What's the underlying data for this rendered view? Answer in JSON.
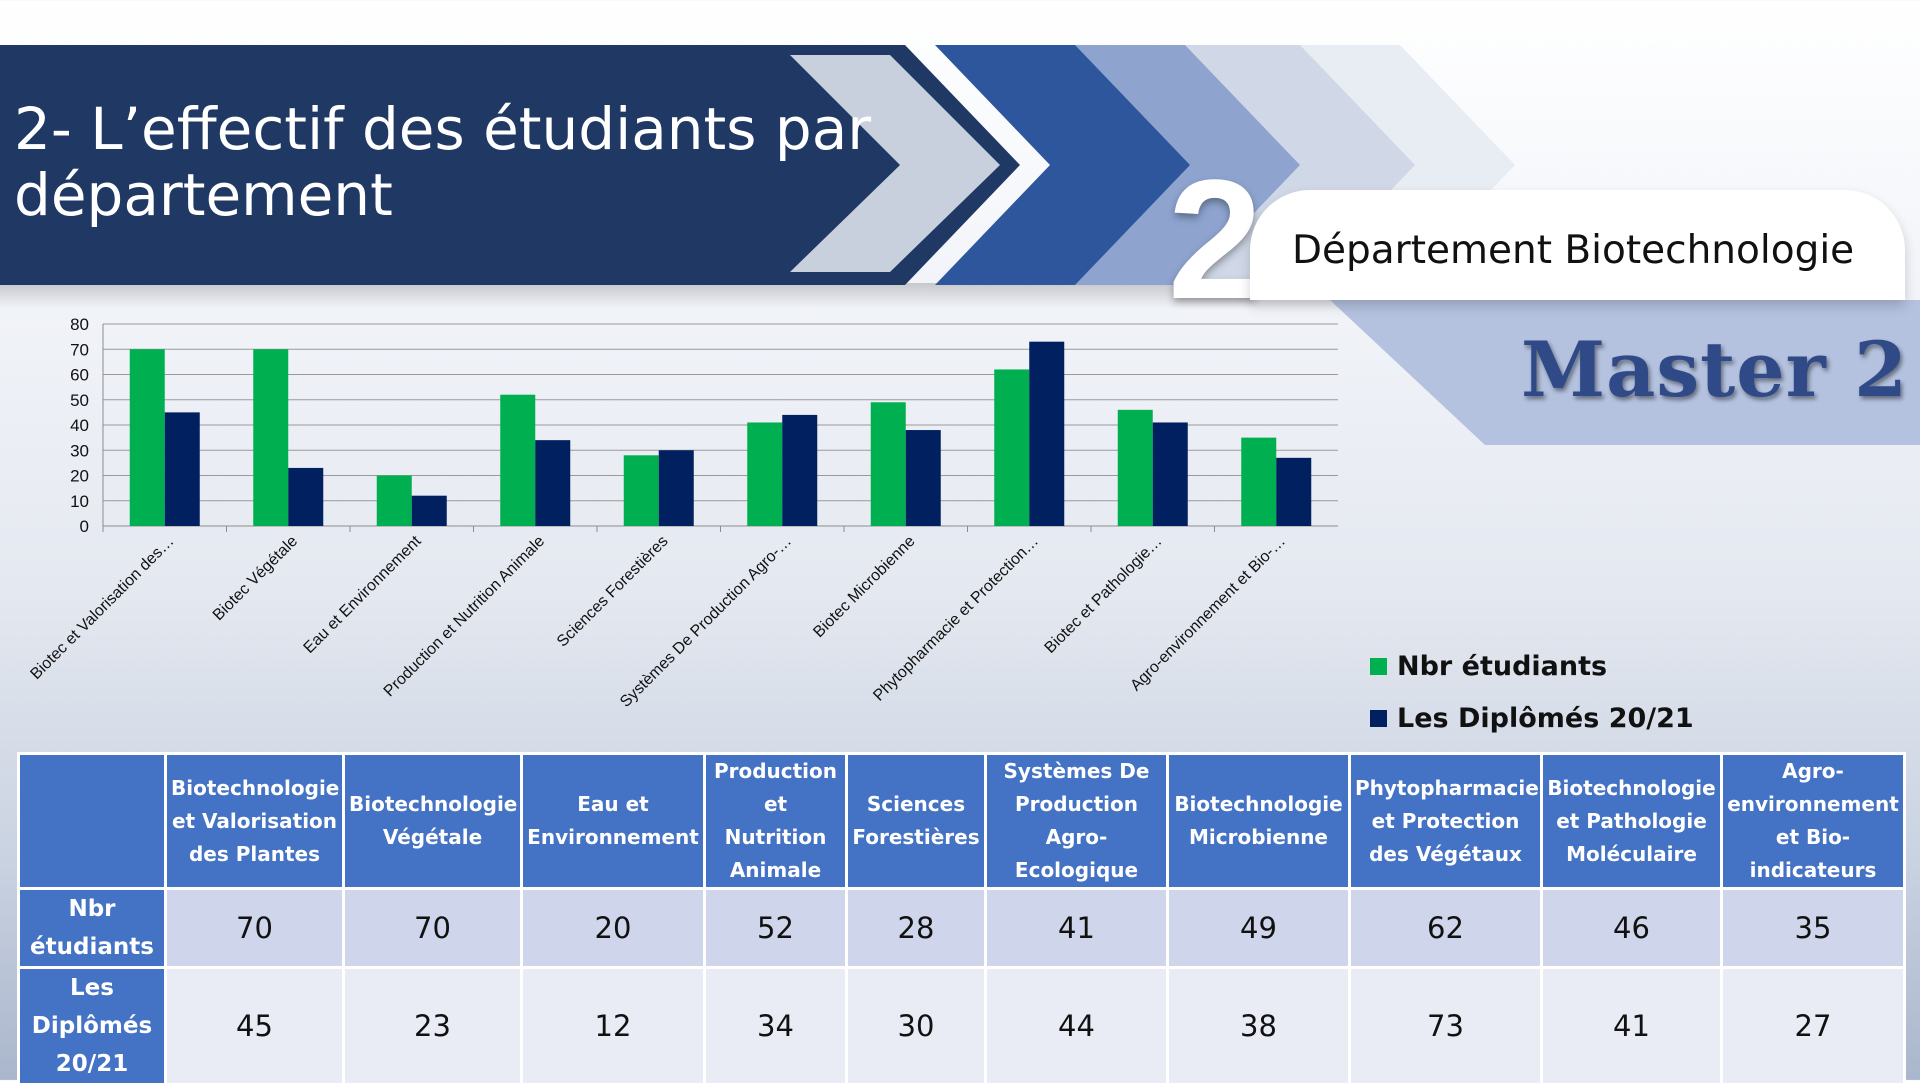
{
  "slide": {
    "title": "2- L’effectif des étudiants par département",
    "badge_number": "2",
    "department_label": "Département Biotechnologie",
    "level_label": "Master 2"
  },
  "colors": {
    "banner_dark": "#1f3864",
    "series_green": "#00b050",
    "series_navy": "#002060",
    "table_header": "#4472c4",
    "row_band_1": "#cfd5ea",
    "row_band_2": "#e9ebf5",
    "master_text": "#2f4a86"
  },
  "chart_data": {
    "type": "bar",
    "categories": [
      "Biotec et Valorisation des…",
      "Biotec Végétale",
      "Eau et Environnement",
      "Production et Nutrition Animale",
      "Sciences Forestières",
      "Systèmes De Production Agro-…",
      "Biotec Microbienne",
      "Phytopharmacie et Protection…",
      "Biotec et Pathologie…",
      "Agro-environnement et Bio-…"
    ],
    "series": [
      {
        "name": "Nbr étudiants",
        "values": [
          70,
          70,
          20,
          52,
          28,
          41,
          49,
          62,
          46,
          35
        ],
        "color": "#00b050"
      },
      {
        "name": "Les Diplômés 20/21",
        "values": [
          45,
          23,
          12,
          34,
          30,
          44,
          38,
          73,
          41,
          27
        ],
        "color": "#002060"
      }
    ],
    "ylim": [
      0,
      80
    ],
    "yticks": [
      "0",
      "10",
      "20",
      "30",
      "40",
      "50",
      "60",
      "70",
      "80"
    ],
    "grid": true,
    "legend_position": "bottom-right"
  },
  "table": {
    "corner": "",
    "headers": [
      "Biotechnologie et Valorisation des Plantes",
      "Biotechnologie Végétale",
      "Eau et Environnement",
      "Production et Nutrition Animale",
      "Sciences Forestières",
      "Systèmes De Production Agro-Ecologique",
      "Biotechnologie Microbienne",
      "Phytopharmacie et Protection des Végétaux",
      "Biotechnologie et Pathologie Moléculaire",
      "Agro-environnement et Bio-indicateurs"
    ],
    "rows": [
      {
        "label": "Nbr étudiants",
        "values": [
          "70",
          "70",
          "20",
          "52",
          "28",
          "41",
          "49",
          "62",
          "46",
          "35"
        ]
      },
      {
        "label": "Les Diplômés 20/21",
        "values": [
          "45",
          "23",
          "12",
          "34",
          "30",
          "44",
          "38",
          "73",
          "41",
          "27"
        ]
      }
    ]
  }
}
